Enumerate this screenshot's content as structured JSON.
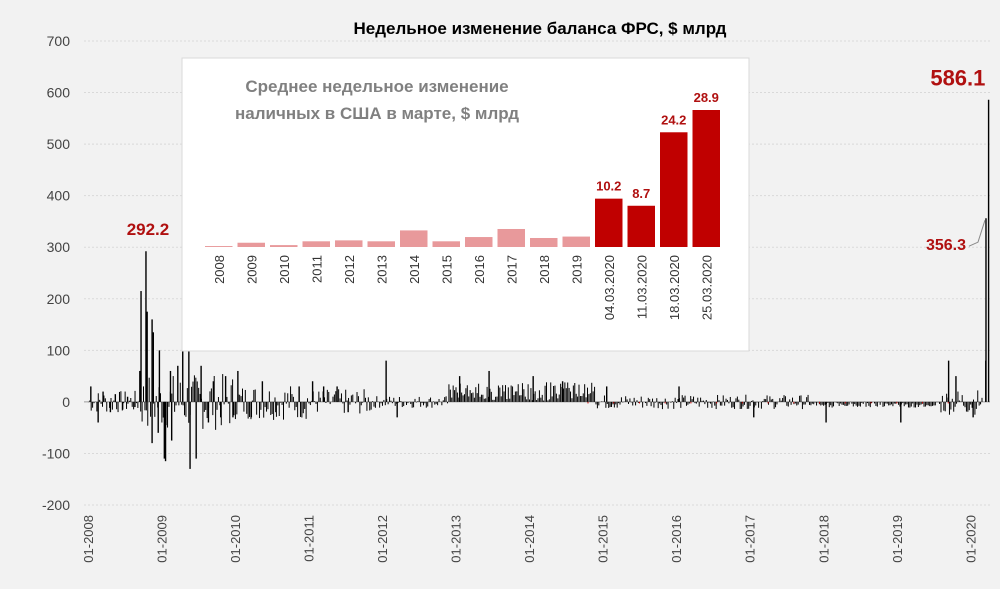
{
  "chart_data": [
    {
      "type": "bar",
      "title": "Недельное изменение баланса ФРС, $ млрд",
      "xlabel": "",
      "ylabel": "",
      "ylim": [
        -200,
        700
      ],
      "yticks": [
        700,
        600,
        500,
        400,
        300,
        200,
        100,
        0,
        -100,
        -200
      ],
      "x_tick_labels": [
        "01-2008",
        "01-2009",
        "01-2010",
        "01-2011",
        "01-2012",
        "01-2013",
        "01-2014",
        "01-2015",
        "01-2016",
        "01-2017",
        "01-2018",
        "01-2019",
        "01-2020"
      ],
      "x_start": "2008-01",
      "x_end": "2020-03",
      "grid": true,
      "series_color": "#000000",
      "highlight_color": "#c00000",
      "annotations": [
        {
          "label": "292.2",
          "x": "2008-10",
          "value": 292.2
        },
        {
          "label": "356.3",
          "x": "2020-03-18",
          "value": 356.3
        },
        {
          "label": "586.1",
          "x": "2020-03-25",
          "value": 586.1
        }
      ],
      "approx_weekly_values": [
        {
          "x": "2008-01",
          "value": 30
        },
        {
          "x": "2008-02",
          "value": -40
        },
        {
          "x": "2008-03",
          "value": 20
        },
        {
          "x": "2008-04",
          "value": -20
        },
        {
          "x": "2008-05",
          "value": 15
        },
        {
          "x": "2008-06",
          "value": -15
        },
        {
          "x": "2008-07",
          "value": 10
        },
        {
          "x": "2008-08",
          "value": -10
        },
        {
          "x": "2008-09",
          "value": 60
        },
        {
          "x": "2008-09",
          "value": 215
        },
        {
          "x": "2008-10",
          "value": 292.2
        },
        {
          "x": "2008-10",
          "value": 175
        },
        {
          "x": "2008-11",
          "value": 160
        },
        {
          "x": "2008-11",
          "value": 135
        },
        {
          "x": "2008-11",
          "value": -80
        },
        {
          "x": "2008-12",
          "value": 100
        },
        {
          "x": "2008-12",
          "value": -60
        },
        {
          "x": "2009-01",
          "value": -115
        },
        {
          "x": "2009-01",
          "value": -110
        },
        {
          "x": "2009-02",
          "value": -75
        },
        {
          "x": "2009-02",
          "value": 60
        },
        {
          "x": "2009-03",
          "value": 70
        },
        {
          "x": "2009-04",
          "value": 165
        },
        {
          "x": "2009-05",
          "value": -130
        },
        {
          "x": "2009-05",
          "value": 100
        },
        {
          "x": "2009-06",
          "value": -110
        },
        {
          "x": "2009-07",
          "value": 70
        },
        {
          "x": "2009-08",
          "value": -40
        },
        {
          "x": "2009-09",
          "value": 40
        },
        {
          "x": "2009-10",
          "value": -30
        },
        {
          "x": "2009-11",
          "value": 50
        },
        {
          "x": "2009-12",
          "value": -30
        },
        {
          "x": "2010-01",
          "value": 60
        },
        {
          "x": "2010-03",
          "value": -30
        },
        {
          "x": "2010-05",
          "value": 40
        },
        {
          "x": "2010-07",
          "value": -20
        },
        {
          "x": "2010-11",
          "value": 30
        },
        {
          "x": "2011-01",
          "value": 40
        },
        {
          "x": "2011-03",
          "value": 30
        },
        {
          "x": "2011-05",
          "value": 30
        },
        {
          "x": "2011-07",
          "value": -20
        },
        {
          "x": "2012-01",
          "value": 80
        },
        {
          "x": "2012-03",
          "value": -30
        },
        {
          "x": "2013-01",
          "value": 50
        },
        {
          "x": "2013-06",
          "value": 60
        },
        {
          "x": "2014-01",
          "value": 50
        },
        {
          "x": "2014-06",
          "value": 40
        },
        {
          "x": "2015-01",
          "value": 30
        },
        {
          "x": "2016-01",
          "value": 30
        },
        {
          "x": "2017-01",
          "value": -30
        },
        {
          "x": "2018-01",
          "value": -40
        },
        {
          "x": "2019-01",
          "value": -40
        },
        {
          "x": "2019-09",
          "value": 80
        },
        {
          "x": "2019-10",
          "value": 50
        },
        {
          "x": "2020-01",
          "value": -30
        },
        {
          "x": "2020-03-11",
          "value": 80
        },
        {
          "x": "2020-03-18",
          "value": 356.3
        },
        {
          "x": "2020-03-25",
          "value": 586.1
        }
      ]
    },
    {
      "type": "bar",
      "title": "Среднее недельное изменение наличных в США в марте, $ млрд",
      "title_lines": [
        "Среднее недельное изменение",
        "наличных в США в марте, $ млрд"
      ],
      "categories": [
        "2008",
        "2009",
        "2010",
        "2011",
        "2012",
        "2013",
        "2014",
        "2015",
        "2016",
        "2017",
        "2018",
        "2019",
        "04.03.2020",
        "11.03.2020",
        "18.03.2020",
        "25.03.2020"
      ],
      "values": [
        0.2,
        0.9,
        0.4,
        1.2,
        1.4,
        1.2,
        3.5,
        1.2,
        2.1,
        3.8,
        1.9,
        2.2,
        10.2,
        8.7,
        24.2,
        28.9
      ],
      "data_labels": [
        "",
        "",
        "",
        "",
        "",
        "",
        "",
        "",
        "",
        "",
        "",
        "",
        "10.2",
        "8.7",
        "24.2",
        "28.9"
      ],
      "ylim": [
        0,
        28.9
      ],
      "colors": {
        "past": "#e8999b",
        "2020": "#c00000"
      },
      "legend": "none"
    }
  ]
}
